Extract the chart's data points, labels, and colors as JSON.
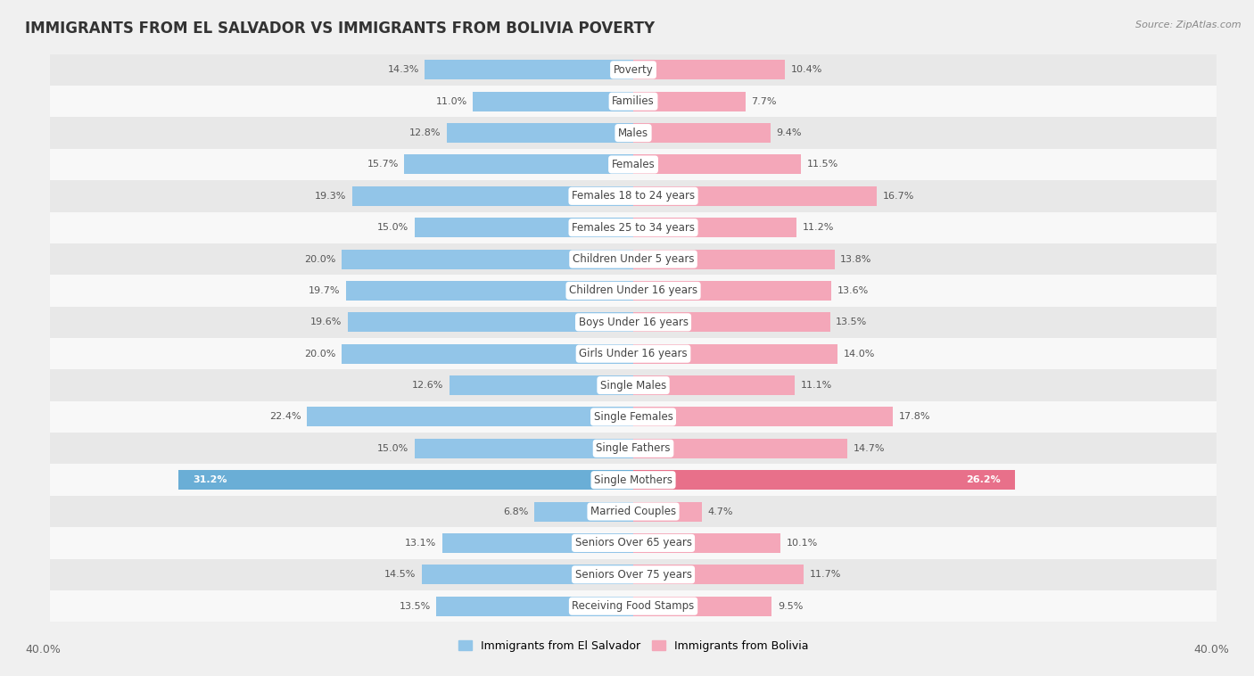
{
  "title": "IMMIGRANTS FROM EL SALVADOR VS IMMIGRANTS FROM BOLIVIA POVERTY",
  "source": "Source: ZipAtlas.com",
  "categories": [
    "Poverty",
    "Families",
    "Males",
    "Females",
    "Females 18 to 24 years",
    "Females 25 to 34 years",
    "Children Under 5 years",
    "Children Under 16 years",
    "Boys Under 16 years",
    "Girls Under 16 years",
    "Single Males",
    "Single Females",
    "Single Fathers",
    "Single Mothers",
    "Married Couples",
    "Seniors Over 65 years",
    "Seniors Over 75 years",
    "Receiving Food Stamps"
  ],
  "left_values": [
    14.3,
    11.0,
    12.8,
    15.7,
    19.3,
    15.0,
    20.0,
    19.7,
    19.6,
    20.0,
    12.6,
    22.4,
    15.0,
    31.2,
    6.8,
    13.1,
    14.5,
    13.5
  ],
  "right_values": [
    10.4,
    7.7,
    9.4,
    11.5,
    16.7,
    11.2,
    13.8,
    13.6,
    13.5,
    14.0,
    11.1,
    17.8,
    14.7,
    26.2,
    4.7,
    10.1,
    11.7,
    9.5
  ],
  "left_color": "#92C5E8",
  "right_color": "#F4A7B9",
  "left_highlight_color": "#6AAED6",
  "right_highlight_color": "#E8708A",
  "highlight_index": 13,
  "left_label": "Immigrants from El Salvador",
  "right_label": "Immigrants from Bolivia",
  "xlim": 40.0,
  "background_color": "#f0f0f0",
  "row_colors": [
    "#e8e8e8",
    "#f8f8f8"
  ],
  "title_fontsize": 12,
  "label_fontsize": 8.5,
  "value_fontsize": 8,
  "bar_height": 0.62
}
